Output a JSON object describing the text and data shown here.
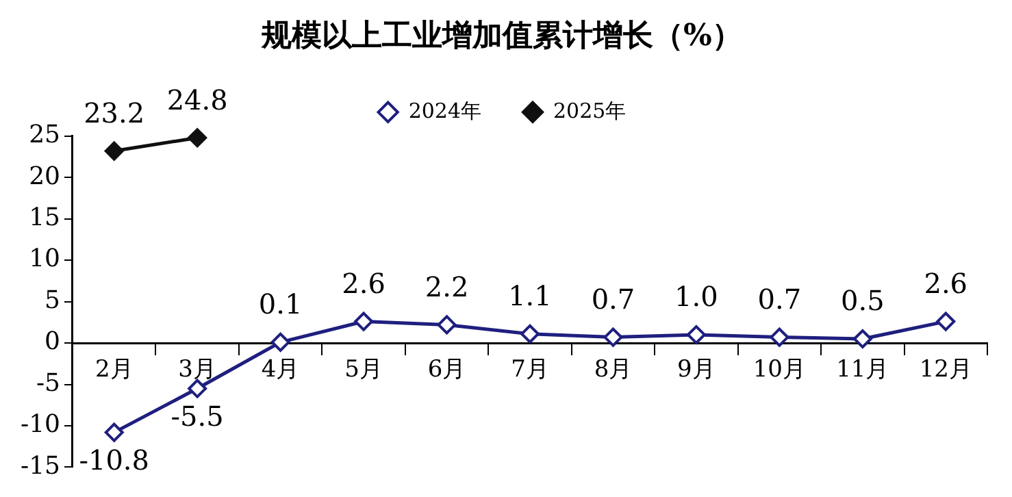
{
  "chart_data": {
    "type": "line",
    "title": "规模以上工业增加值累计增长（%）",
    "categories": [
      "2月",
      "3月",
      "4月",
      "5月",
      "6月",
      "7月",
      "8月",
      "9月",
      "10月",
      "11月",
      "12月"
    ],
    "series": [
      {
        "name": "2024年",
        "color": "#1f1f7f",
        "values": [
          -10.8,
          -5.5,
          0.1,
          2.6,
          2.2,
          1.1,
          0.7,
          1.0,
          0.7,
          0.5,
          2.6
        ],
        "value_labels": [
          "-10.8",
          "-5.5",
          "0.1",
          "2.6",
          "2.2",
          "1.1",
          "0.7",
          "1.0",
          "0.7",
          "0.5",
          "2.6"
        ]
      },
      {
        "name": "2025年",
        "color": "#101010",
        "values": [
          23.2,
          24.8,
          null,
          null,
          null,
          null,
          null,
          null,
          null,
          null,
          null
        ],
        "value_labels": [
          "23.2",
          "24.8",
          null,
          null,
          null,
          null,
          null,
          null,
          null,
          null,
          null
        ]
      }
    ],
    "ylim": [
      -15,
      25
    ],
    "yticks": [
      -15,
      -10,
      -5,
      0,
      5,
      10,
      15,
      20,
      25
    ],
    "legend": "top",
    "marker": "diamond",
    "line_style": "solid"
  }
}
